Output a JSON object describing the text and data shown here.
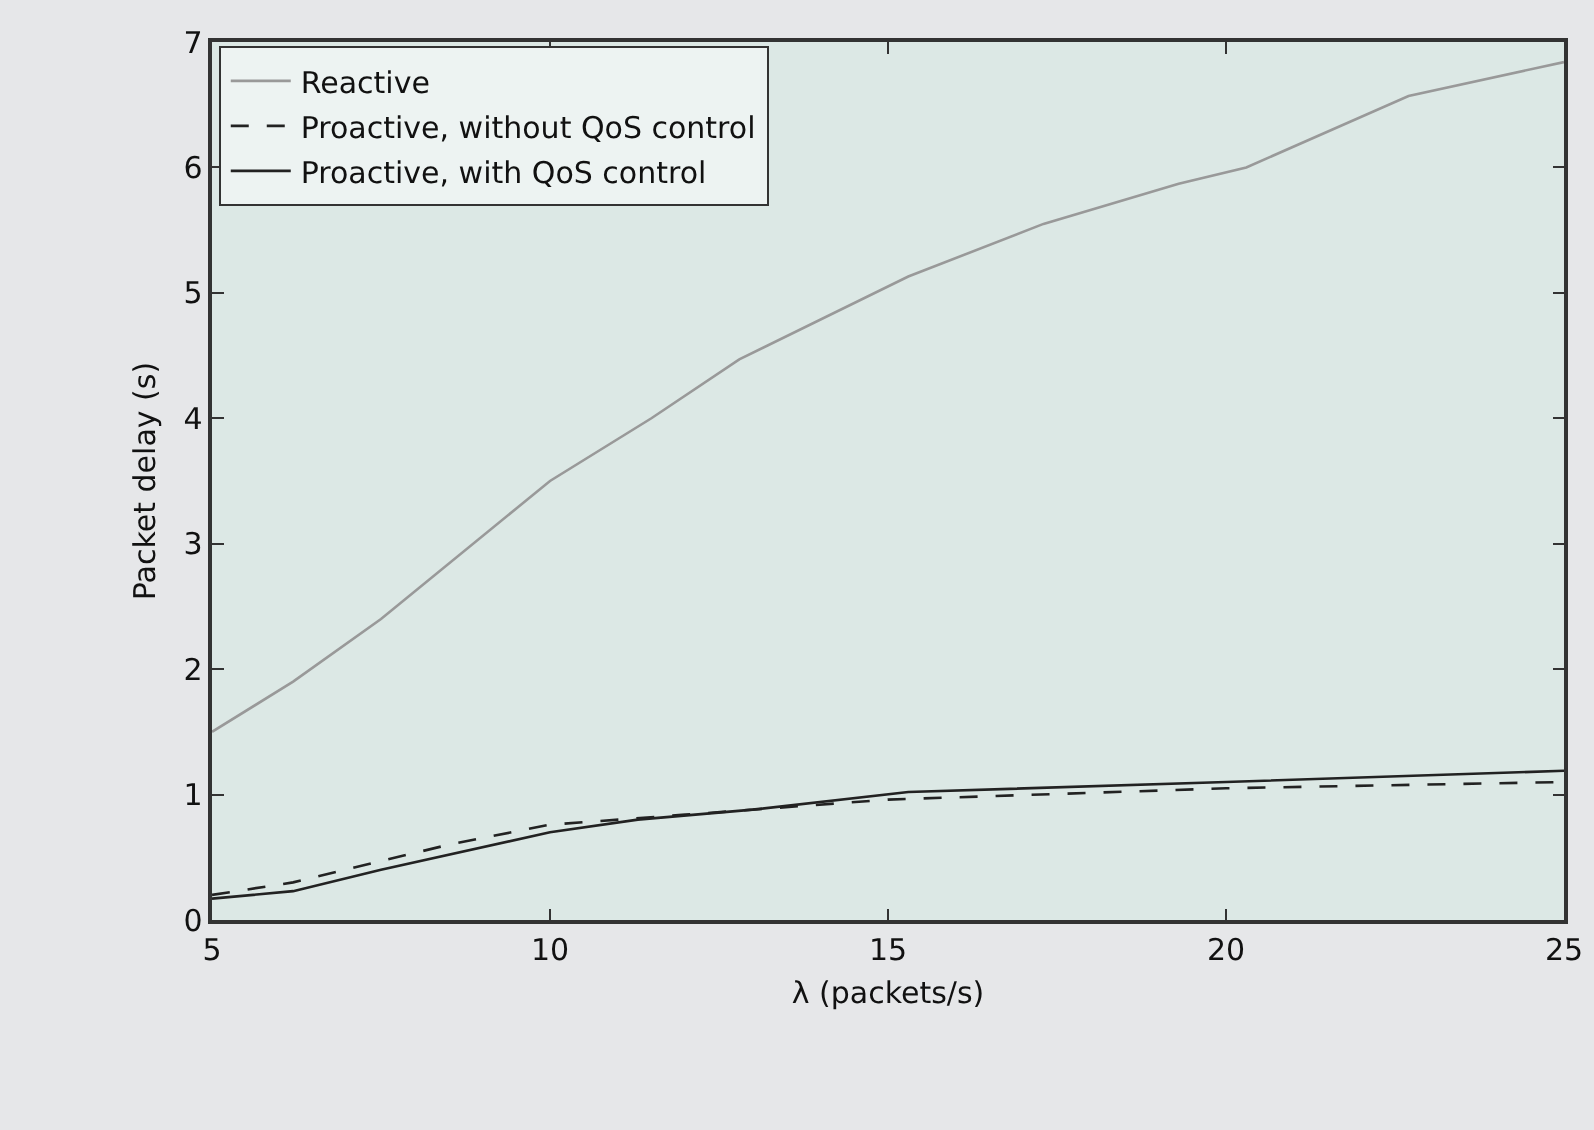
{
  "chart_data": {
    "type": "line",
    "xlabel": "λ (packets/s)",
    "ylabel": "Packet delay (s)",
    "xlim": [
      5,
      25
    ],
    "xticks": [
      5,
      10,
      15,
      20,
      25
    ],
    "ylim": [
      0,
      7
    ],
    "yticks": [
      0,
      1,
      2,
      3,
      4,
      5,
      6,
      7
    ],
    "grid": false,
    "legend": "top left",
    "marker": "none",
    "series": [
      {
        "name": "Reactive",
        "color": "#999999",
        "line_style": "solid",
        "x": [
          5,
          6.2,
          7.5,
          10,
          11.5,
          12.8,
          15.3,
          17.3,
          19.3,
          20.3,
          22.7,
          25
        ],
        "values": [
          1.5,
          1.9,
          2.4,
          3.5,
          4.0,
          4.47,
          5.13,
          5.55,
          5.87,
          6.0,
          6.57,
          6.84
        ]
      },
      {
        "name": "Proactive, without QoS control",
        "color": "#222222",
        "line_style": "dashed",
        "x": [
          5,
          6.2,
          8.5,
          10,
          12,
          15,
          20,
          25
        ],
        "values": [
          0.2,
          0.3,
          0.6,
          0.76,
          0.84,
          0.96,
          1.05,
          1.1
        ]
      },
      {
        "name": "Proactive, with QoS control",
        "color": "#222222",
        "line_style": "solid",
        "x": [
          5,
          6.2,
          7.5,
          10,
          11.3,
          13,
          15.3,
          20,
          25
        ],
        "values": [
          0.17,
          0.23,
          0.4,
          0.7,
          0.8,
          0.88,
          1.02,
          1.1,
          1.19
        ]
      }
    ]
  }
}
